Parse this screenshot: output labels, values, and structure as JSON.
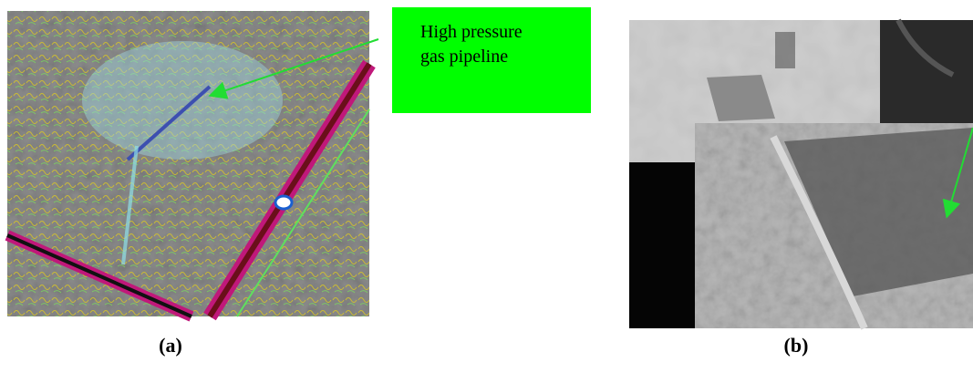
{
  "annotation": {
    "lines": [
      "High pressure",
      "gas pipeline"
    ]
  },
  "captions": [
    "(a)",
    "(b)"
  ]
}
